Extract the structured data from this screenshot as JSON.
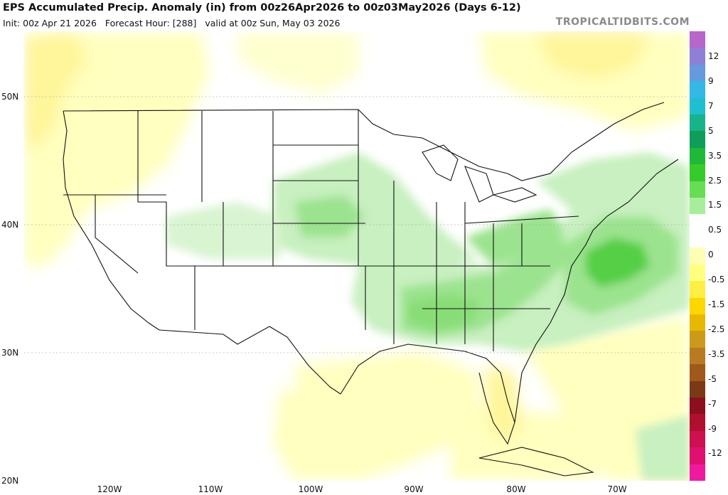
{
  "header": {
    "title": "EPS Accumulated Precip. Anomaly (in) from 00z26Apr2026 to 00z03May2026 (Days 6-12)",
    "init": "Init: 00z Apr 21 2026",
    "forecast_hour": "Forecast Hour: [288]",
    "valid": "valid at 00z Sun, May 03 2026",
    "brand": "TROPICALTIDBITS.COM"
  },
  "axes": {
    "latitudes": [
      "50N",
      "40N",
      "30N",
      "20N"
    ],
    "longitudes": [
      "120W",
      "110W",
      "100W",
      "90W",
      "80W",
      "70W"
    ]
  },
  "colorbar": {
    "labels": [
      "12",
      "9",
      "7",
      "5",
      "3.5",
      "2.5",
      "1.5",
      "0.5",
      "0",
      "-0.5",
      "-1.5",
      "-2.5",
      "-3.5",
      "-5",
      "-7",
      "-9",
      "-12"
    ],
    "colors": [
      "#b766c9",
      "#8f7fd6",
      "#6699dd",
      "#33b8e8",
      "#1fbfcf",
      "#17b38a",
      "#0e9e58",
      "#1fb83a",
      "#35cc2a",
      "#66dd55",
      "#a6ee99",
      "#ffffff",
      "#ffffff",
      "#ffffb3",
      "#ffff80",
      "#ffee44",
      "#ffd700",
      "#e6b800",
      "#cc9a1a",
      "#b87a22",
      "#9f5a1a",
      "#7a3a14",
      "#8c0f1f",
      "#b01030",
      "#cc1050",
      "#e01070",
      "#f01aa0"
    ]
  },
  "map": {
    "region": "Continental United States",
    "anomaly_colors": {
      "wet_light": "#c8f0c0",
      "wet_medium": "#9be38e",
      "wet_heavy": "#55cf45",
      "dry_light": "#ffffc2",
      "dry_medium": "#fff39a"
    }
  }
}
